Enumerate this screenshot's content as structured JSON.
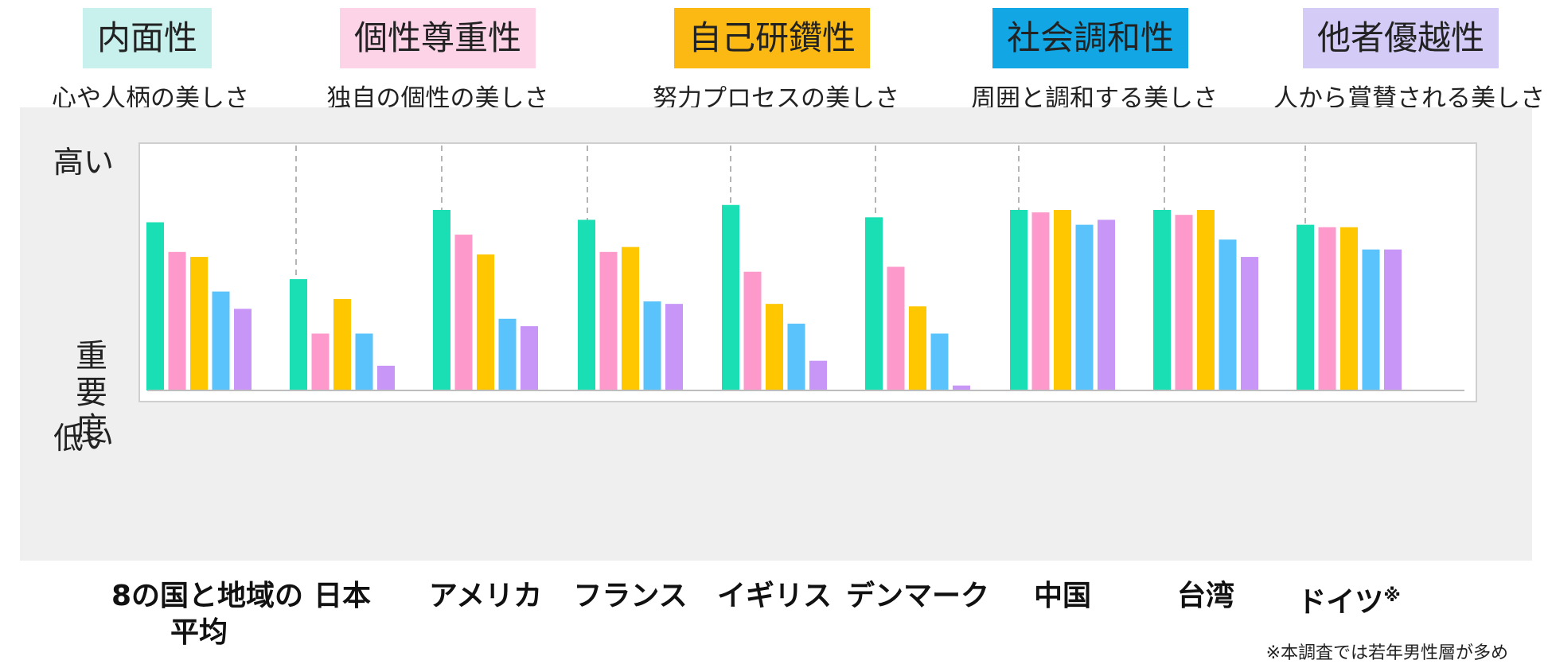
{
  "legend": [
    {
      "label": "内面性",
      "desc": "心や人柄の美しさ",
      "color": "#c8f0ec"
    },
    {
      "label": "個性尊重性",
      "desc": "独自の個性の美しさ",
      "color": "#fdd3e8"
    },
    {
      "label": "自己研鑽性",
      "desc": "努力プロセスの美しさ",
      "color": "#fdb913"
    },
    {
      "label": "社会調和性",
      "desc": "周囲と調和する美しさ",
      "color": "#12a6e4"
    },
    {
      "label": "他者優越性",
      "desc": "人から賞賛される美しさ",
      "color": "#d4ccf7"
    }
  ],
  "axis": {
    "high": "高い",
    "low": "低い",
    "ylabel": "重要度"
  },
  "note": "※本調査では若年男性層が多め",
  "chart_data": {
    "type": "bar",
    "title": "",
    "ylabel": "重要度",
    "ylim": [
      0,
      100
    ],
    "categories": [
      "8の国と地域の平均",
      "日本",
      "アメリカ",
      "フランス",
      "イギリス",
      "デンマーク",
      "中国",
      "台湾",
      "ドイツ※"
    ],
    "category_display": [
      [
        "8の国と地域の",
        "平均"
      ],
      [
        "日本"
      ],
      [
        "アメリカ"
      ],
      [
        "フランス"
      ],
      [
        "イギリス"
      ],
      [
        "デンマーク"
      ],
      [
        "中国"
      ],
      [
        "台湾"
      ],
      [
        "ドイツ",
        "※"
      ]
    ],
    "series": [
      {
        "name": "内面性",
        "color": "#1adfb4",
        "values": [
          68,
          45,
          73,
          69,
          75,
          70,
          73,
          73,
          67
        ]
      },
      {
        "name": "個性尊重性",
        "color": "#fd9acb",
        "values": [
          56,
          23,
          63,
          56,
          48,
          50,
          72,
          71,
          66
        ]
      },
      {
        "name": "自己研鑽性",
        "color": "#ffc700",
        "values": [
          54,
          37,
          55,
          58,
          35,
          34,
          73,
          73,
          66
        ]
      },
      {
        "name": "社会調和性",
        "color": "#5bc3fb",
        "values": [
          40,
          23,
          29,
          36,
          27,
          23,
          67,
          61,
          57
        ]
      },
      {
        "name": "他者優越性",
        "color": "#c896f7",
        "values": [
          33,
          10,
          26,
          35,
          12,
          2,
          69,
          54,
          57
        ]
      }
    ]
  }
}
